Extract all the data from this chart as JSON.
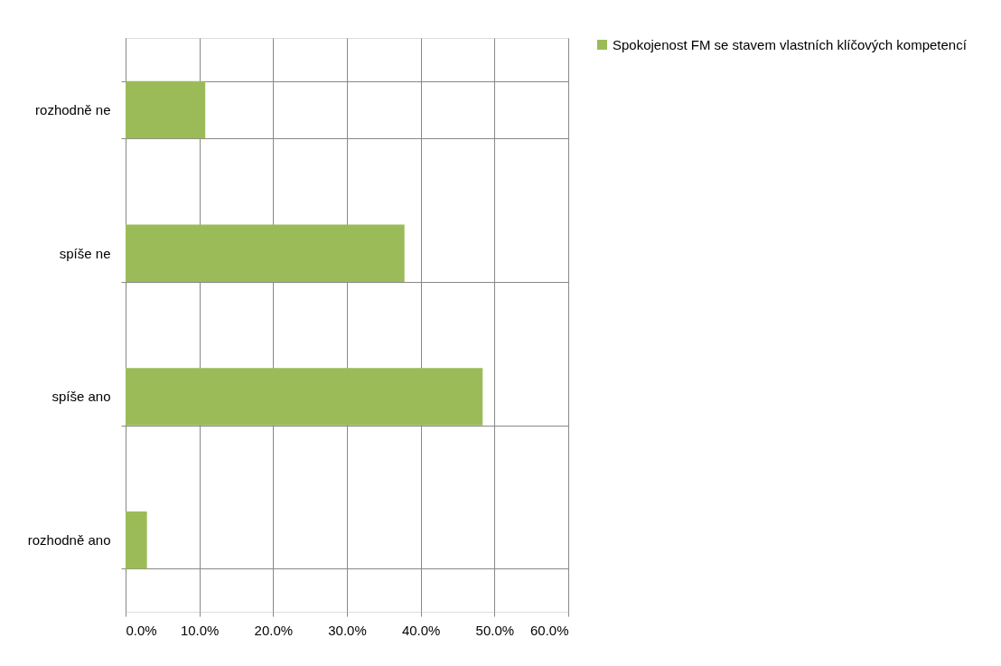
{
  "chart_data": {
    "type": "bar",
    "orientation": "horizontal",
    "categories": [
      "rozhodně ne",
      "spíše ne",
      "spíše ano",
      "rozhodně ano"
    ],
    "series": [
      {
        "name": "Spokojenost FM se stavem vlastních klíčových kompetencí",
        "color": "#9bbb59",
        "values": [
          10.8,
          37.8,
          48.4,
          2.9
        ]
      }
    ],
    "xlim": [
      0,
      60
    ],
    "xticks": [
      {
        "value": 0,
        "label": "0.0%"
      },
      {
        "value": 10,
        "label": "10.0%"
      },
      {
        "value": 20,
        "label": "20.0%"
      },
      {
        "value": 30,
        "label": "30.0%"
      },
      {
        "value": 40,
        "label": "40.0%"
      },
      {
        "value": 50,
        "label": "50.0%"
      },
      {
        "value": 60,
        "label": "60.0%"
      }
    ],
    "grid": true,
    "legend": "right"
  }
}
